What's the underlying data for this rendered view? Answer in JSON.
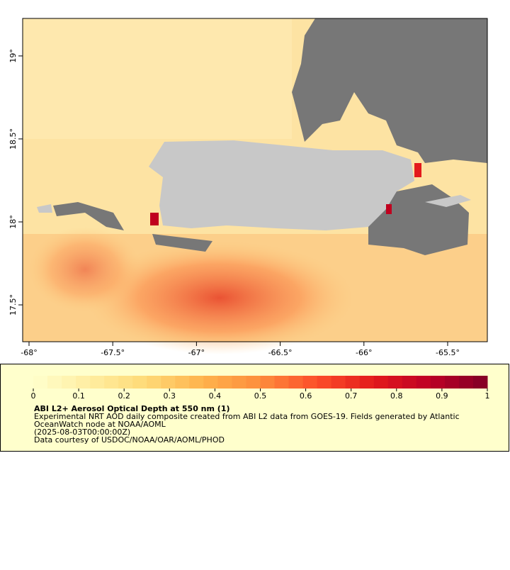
{
  "map": {
    "xlim": [
      -68.038,
      -65.263
    ],
    "ylim": [
      17.278,
      19.226
    ],
    "xticks": [
      {
        "value": -68,
        "label": "-68°"
      },
      {
        "value": -67.5,
        "label": "-67.5°"
      },
      {
        "value": -67,
        "label": "-67°"
      },
      {
        "value": -66.5,
        "label": "-66.5°"
      },
      {
        "value": -66,
        "label": "-66°"
      },
      {
        "value": -65.5,
        "label": "-65.5°"
      }
    ],
    "yticks": [
      {
        "value": 17.5,
        "label": "17.5°"
      },
      {
        "value": 18,
        "label": "18°"
      },
      {
        "value": 18.5,
        "label": "18.5°"
      },
      {
        "value": 19,
        "label": "19°"
      }
    ]
  },
  "colorbar": {
    "range": [
      0,
      1
    ],
    "ticks": [
      0,
      0.1,
      0.2,
      0.3,
      0.4,
      0.5,
      0.6,
      0.7,
      0.8,
      0.9,
      1
    ],
    "colors": [
      "#ffffcc",
      "#ffeda0",
      "#fed976",
      "#feb24c",
      "#fd8d3c",
      "#fc4e2a",
      "#e31a1c",
      "#bd0026",
      "#800026"
    ]
  },
  "legend": {
    "title": "ABI L2+ Aerosol Optical Depth at 550 nm (1)",
    "lines": [
      "Experimental NRT AOD daily composite created from ABI L2 data from GOES-19. Fields generated by Atlantic",
      "OceanWatch node at NOAA/AOML",
      "(2025-08-03T00:00:00Z)",
      "Data courtesy of USDOC/NOAA/OAR/AOML/PHOD"
    ]
  }
}
